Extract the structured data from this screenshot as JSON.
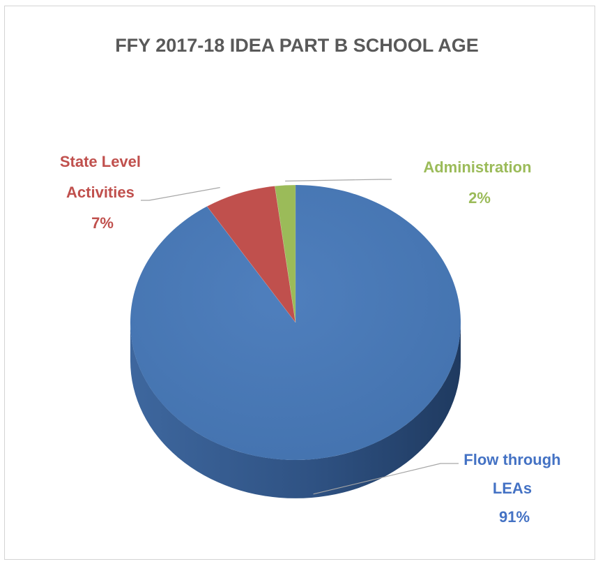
{
  "chart_data": {
    "type": "pie",
    "title": "FFY 2017-18 IDEA PART B SCHOOL AGE",
    "slices": [
      {
        "label_lines": [
          "Flow through",
          "LEAs"
        ],
        "percent_label": "91%",
        "value": 91,
        "color": "#4a78b5",
        "side_color": "#35598d"
      },
      {
        "label_lines": [
          "State Level",
          "Activities"
        ],
        "percent_label": "7%",
        "value": 7,
        "color": "#c0504d",
        "side_color": "#8f3533"
      },
      {
        "label_lines": [
          "Administration"
        ],
        "percent_label": "2%",
        "value": 2,
        "color": "#9bbb59",
        "side_color": "#71893f"
      }
    ],
    "style": "3d-pie",
    "legend": "none"
  }
}
